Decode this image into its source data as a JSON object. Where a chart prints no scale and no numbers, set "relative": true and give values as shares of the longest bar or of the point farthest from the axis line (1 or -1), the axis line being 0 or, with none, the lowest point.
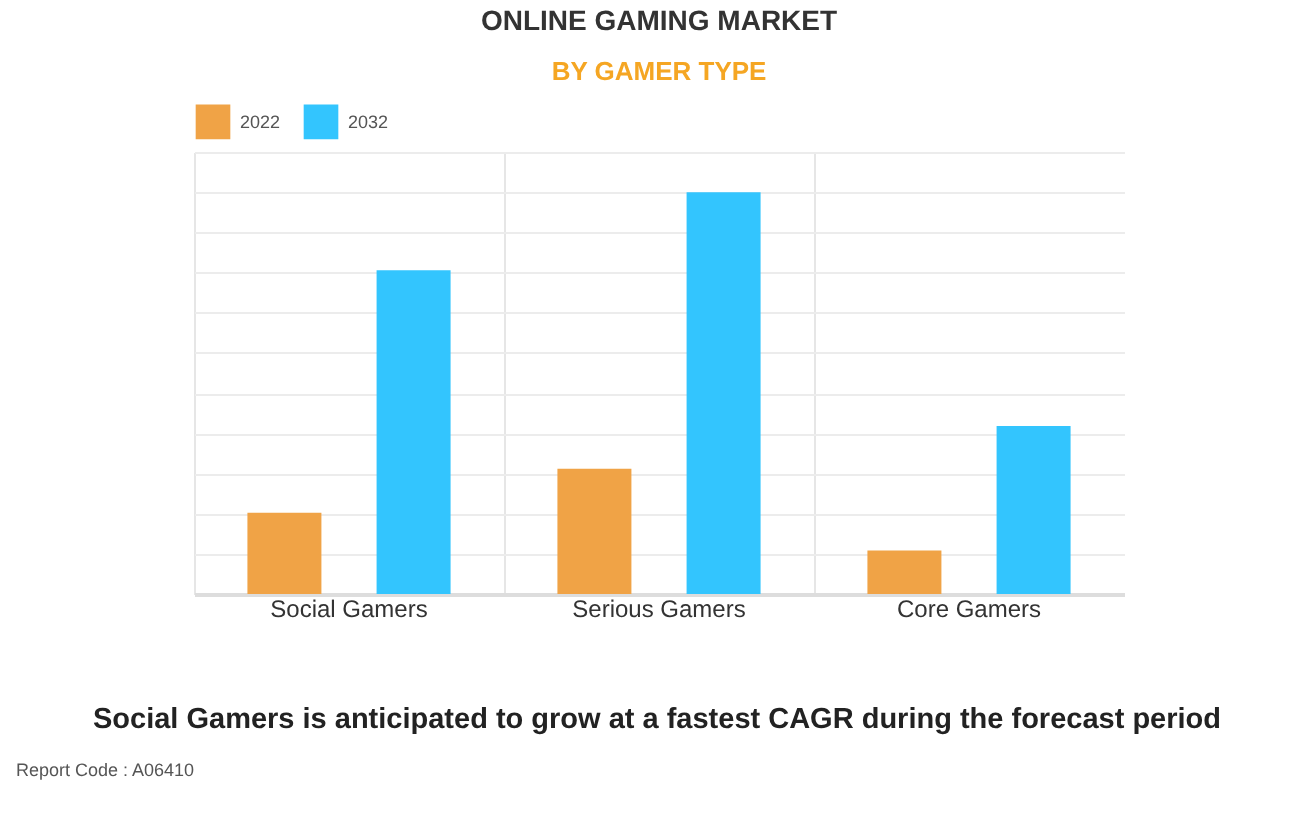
{
  "chart_data": {
    "type": "bar",
    "title": "ONLINE GAMING MARKET",
    "subtitle": "BY GAMER TYPE",
    "categories": [
      "Social Gamers",
      "Serious Gamers",
      "Core Gamers"
    ],
    "series": [
      {
        "name": "2022",
        "color": "#f0a346",
        "values": [
          0.202,
          0.312,
          0.108
        ]
      },
      {
        "name": "2032",
        "color": "#33c5fe",
        "values": [
          0.806,
          1,
          0.418
        ]
      }
    ],
    "relative": true,
    "grid": true,
    "legend": "top",
    "annotations": [
      "Social Gamers is anticipated to grow at a fastest CAGR during the forecast period",
      "Report Code : A06410"
    ]
  }
}
